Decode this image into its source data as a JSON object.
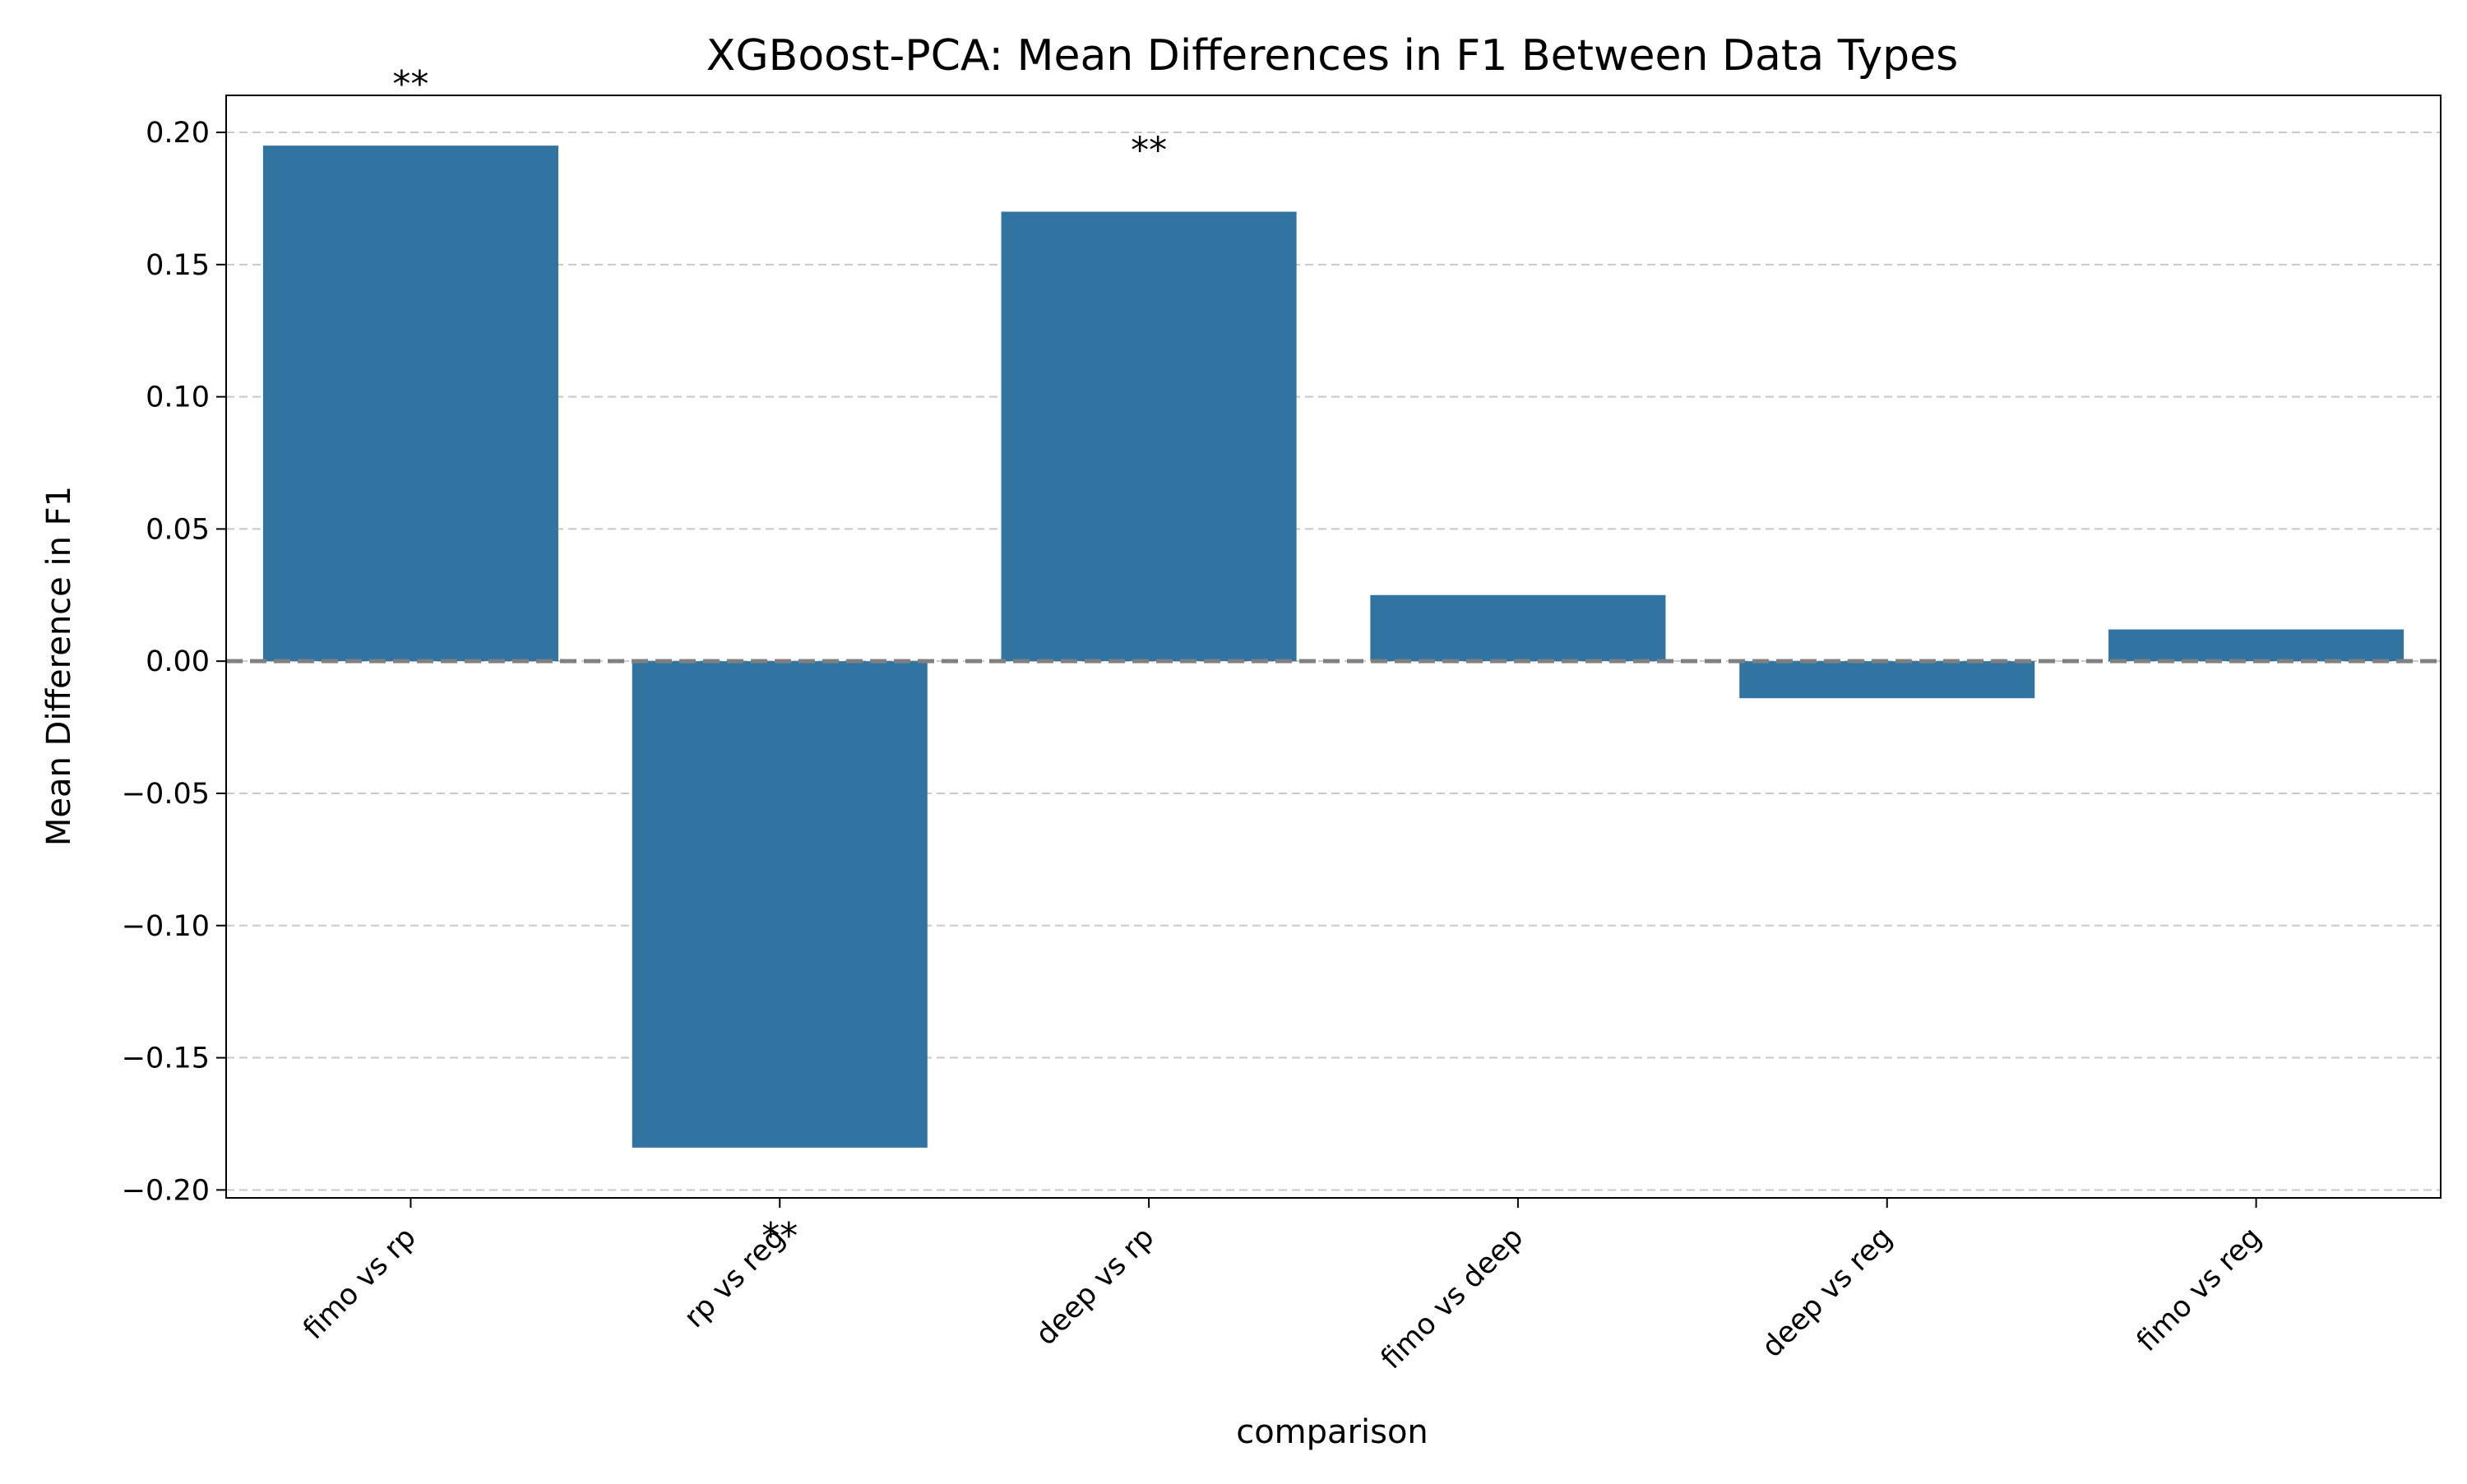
{
  "chart_data": {
    "type": "bar",
    "title": "XGBoost-PCA: Mean Differences in F1 Between Data Types",
    "xlabel": "comparison",
    "ylabel": "Mean Difference in F1",
    "categories": [
      "fimo vs rp",
      "rp vs reg",
      "deep vs rp",
      "fimo vs deep",
      "deep vs reg",
      "fimo vs reg"
    ],
    "values": [
      0.195,
      -0.184,
      0.17,
      0.025,
      -0.014,
      0.012
    ],
    "significance": [
      "**",
      "**",
      "**",
      "",
      "",
      ""
    ],
    "ylim": [
      -0.203,
      0.214
    ],
    "yticks": [
      0.2,
      0.15,
      0.1,
      0.05,
      0.0,
      -0.05,
      -0.1,
      -0.15,
      -0.2
    ],
    "ytick_labels": [
      "0.20",
      "0.15",
      "0.10",
      "0.05",
      "0.00",
      "−0.05",
      "−0.10",
      "−0.15",
      "−0.20"
    ],
    "grid": "horizontal dashed",
    "reference_line": 0,
    "colors": {
      "bar": "#3274a1",
      "grid": "#c8c8c8",
      "zero_line": "#808080"
    }
  }
}
